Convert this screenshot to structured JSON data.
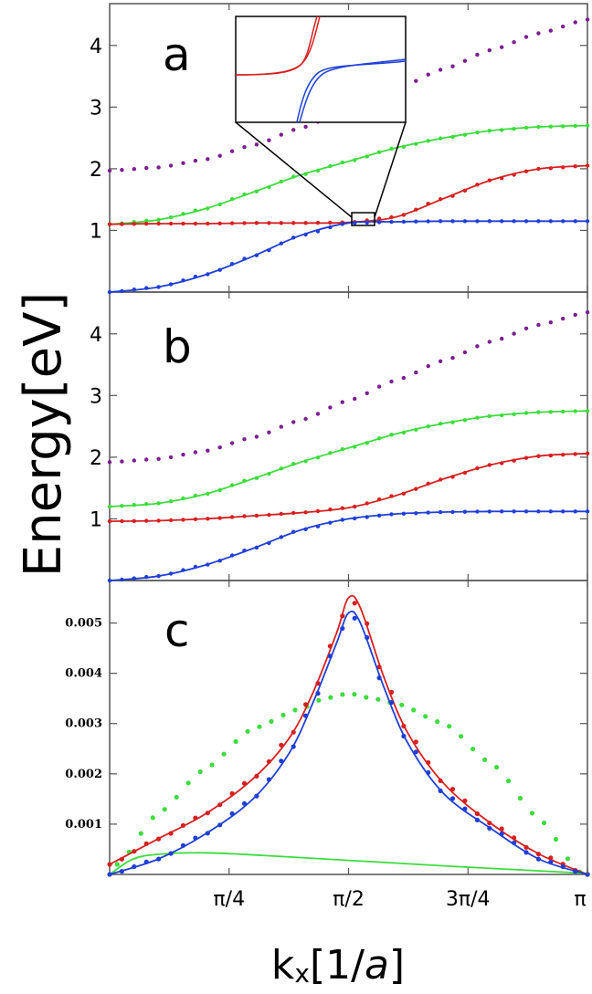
{
  "chart_data": [
    {
      "panel": "a",
      "type": "line",
      "ylabel": "Energy[eV]",
      "xlabel": "kx[1/a]",
      "ylim": [
        0,
        4.5
      ],
      "yticks": [
        "1",
        "2",
        "3",
        "4"
      ],
      "xlim": [
        0,
        3.1416
      ],
      "inset": "zoom of the avoided crossing near k = π/2, E ≈ 1.1",
      "series": [
        {
          "color": "#7a1f8f",
          "style": "dots",
          "x": [
            0,
            0.314,
            0.628,
            0.942,
            1.257,
            1.571,
            1.885,
            2.199,
            2.513,
            2.827,
            3.142
          ],
          "values": [
            1.97,
            2.02,
            2.15,
            2.38,
            2.66,
            2.98,
            3.3,
            3.62,
            3.93,
            4.2,
            4.42
          ]
        },
        {
          "color": "#3ddc3d",
          "style": "line+dots",
          "x": [
            0,
            0.314,
            0.628,
            0.942,
            1.257,
            1.571,
            1.885,
            2.199,
            2.513,
            2.827,
            3.142
          ],
          "values": [
            1.1,
            1.17,
            1.35,
            1.62,
            1.9,
            2.12,
            2.34,
            2.5,
            2.62,
            2.68,
            2.7
          ]
        },
        {
          "color": "#d62020",
          "style": "line+dots",
          "x": [
            0,
            0.314,
            0.628,
            0.942,
            1.257,
            1.571,
            1.885,
            2.199,
            2.513,
            2.827,
            3.142
          ],
          "values": [
            1.1,
            1.11,
            1.11,
            1.12,
            1.12,
            1.13,
            1.22,
            1.52,
            1.82,
            2.0,
            2.05
          ]
        },
        {
          "color": "#1f3fd6",
          "style": "line+dots",
          "x": [
            0,
            0.314,
            0.628,
            0.942,
            1.257,
            1.571,
            1.885,
            2.199,
            2.513,
            2.827,
            3.142
          ],
          "values": [
            0.0,
            0.08,
            0.28,
            0.58,
            0.92,
            1.12,
            1.14,
            1.15,
            1.15,
            1.15,
            1.15
          ]
        }
      ]
    },
    {
      "panel": "b",
      "type": "line",
      "ylabel": "Energy[eV]",
      "xlabel": "kx[1/a]",
      "ylim": [
        0,
        4.5
      ],
      "yticks": [
        "1",
        "2",
        "3",
        "4"
      ],
      "xlim": [
        0,
        3.1416
      ],
      "series": [
        {
          "color": "#7a1f8f",
          "style": "dots",
          "x": [
            0,
            0.314,
            0.628,
            0.942,
            1.257,
            1.571,
            1.885,
            2.199,
            2.513,
            2.827,
            3.142
          ],
          "values": [
            1.92,
            1.97,
            2.1,
            2.32,
            2.6,
            2.92,
            3.25,
            3.57,
            3.88,
            4.15,
            4.35
          ]
        },
        {
          "color": "#3ddc3d",
          "style": "line+dots",
          "x": [
            0,
            0.314,
            0.628,
            0.942,
            1.257,
            1.571,
            1.885,
            2.199,
            2.513,
            2.827,
            3.142
          ],
          "values": [
            1.2,
            1.25,
            1.4,
            1.65,
            1.92,
            2.15,
            2.38,
            2.55,
            2.67,
            2.73,
            2.75
          ]
        },
        {
          "color": "#d62020",
          "style": "line+dots",
          "x": [
            0,
            0.314,
            0.628,
            0.942,
            1.257,
            1.571,
            1.885,
            2.199,
            2.513,
            2.827,
            3.142
          ],
          "values": [
            0.96,
            0.97,
            1.0,
            1.05,
            1.1,
            1.18,
            1.38,
            1.65,
            1.88,
            2.02,
            2.06
          ]
        },
        {
          "color": "#1f3fd6",
          "style": "line+dots",
          "x": [
            0,
            0.314,
            0.628,
            0.942,
            1.257,
            1.571,
            1.885,
            2.199,
            2.513,
            2.827,
            3.142
          ],
          "values": [
            0.0,
            0.07,
            0.25,
            0.52,
            0.82,
            1.0,
            1.08,
            1.11,
            1.12,
            1.12,
            1.12
          ]
        }
      ]
    },
    {
      "panel": "c",
      "type": "line",
      "xlabel": "kx[1/a]",
      "ylim": [
        0,
        0.0057
      ],
      "yticks": [
        "0.001",
        "0.002",
        "0.003",
        "0.004",
        "0.005"
      ],
      "xticks": [
        "π/4",
        "π/2",
        "3π/4",
        "π"
      ],
      "xlim": [
        0,
        3.1416
      ],
      "series": [
        {
          "color": "#3ddc3d",
          "style": "dots",
          "x": [
            0.05,
            0.314,
            0.628,
            0.942,
            1.257,
            1.414,
            1.571,
            1.728,
            1.885,
            2.199,
            2.513,
            2.827,
            3.09
          ],
          "values": [
            0.0002,
            0.0012,
            0.0021,
            0.0029,
            0.0033,
            0.0035,
            0.0036,
            0.0035,
            0.0034,
            0.003,
            0.0022,
            0.0011,
            5e-05
          ]
        },
        {
          "color": "#3ddc3d",
          "style": "line",
          "x": [
            0,
            0.15,
            0.314,
            0.628,
            1.0,
            1.571,
            2.199,
            2.827,
            3.142
          ],
          "values": [
            0,
            0.0003,
            0.0004,
            0.00043,
            0.00038,
            0.00028,
            0.00017,
            7e-05,
            2e-05
          ]
        },
        {
          "color": "#d62020",
          "style": "line+dots",
          "x": [
            0,
            0.314,
            0.628,
            0.942,
            1.178,
            1.335,
            1.492,
            1.571,
            1.649,
            1.806,
            1.963,
            2.199,
            2.513,
            2.827,
            3.142
          ],
          "values": [
            0.0002,
            0.0007,
            0.0012,
            0.0019,
            0.0027,
            0.0036,
            0.0048,
            0.0055,
            0.0053,
            0.0039,
            0.0028,
            0.0018,
            0.001,
            0.0004,
            0.0
          ]
        },
        {
          "color": "#1f3fd6",
          "style": "line+dots",
          "x": [
            0,
            0.314,
            0.628,
            0.942,
            1.178,
            1.335,
            1.492,
            1.571,
            1.649,
            1.806,
            1.963,
            2.199,
            2.513,
            2.827,
            3.142
          ],
          "values": [
            0.0,
            0.0003,
            0.0008,
            0.0015,
            0.0024,
            0.0034,
            0.0046,
            0.0052,
            0.005,
            0.0037,
            0.0026,
            0.0016,
            0.0009,
            0.0003,
            0.0
          ]
        }
      ]
    }
  ],
  "labels": {
    "panel_a": "a",
    "panel_b": "b",
    "panel_c": "c",
    "ylabel": "Energy[eV]",
    "xlabel_main": "k",
    "xlabel_sub": "x",
    "xlabel_rest": "[1/",
    "xlabel_a": "a",
    "xlabel_close": "]"
  }
}
